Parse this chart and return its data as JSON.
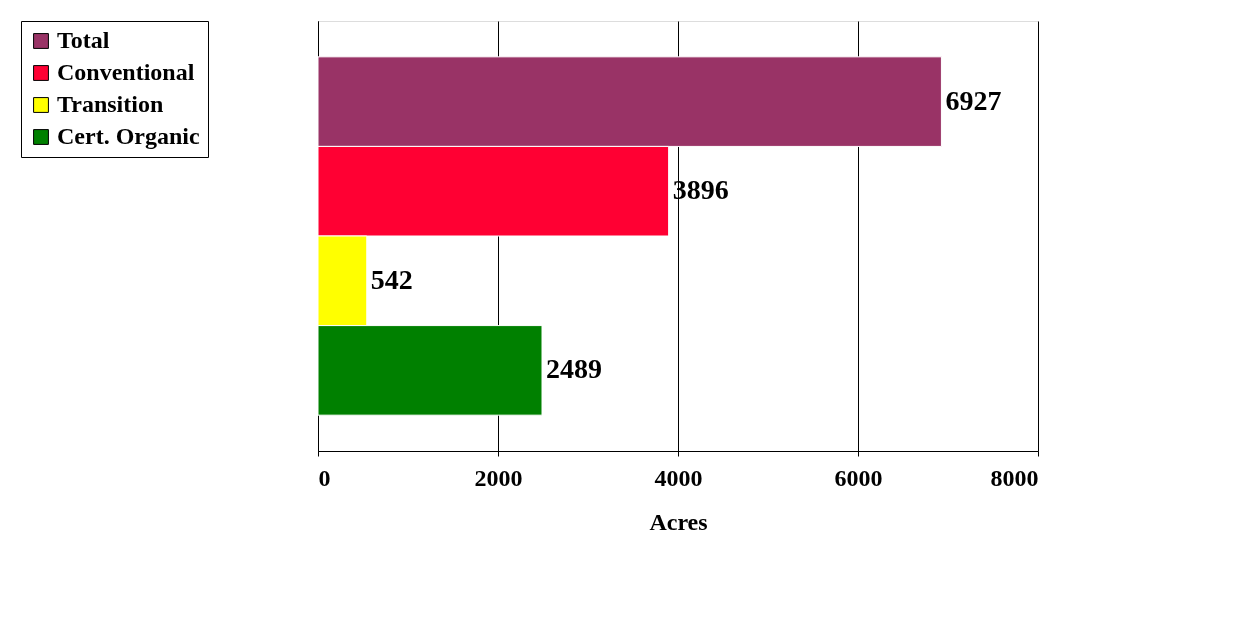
{
  "chart_data": {
    "type": "bar",
    "orientation": "horizontal",
    "categories": [
      null,
      null,
      null,
      null
    ],
    "series": [
      {
        "name": "Total",
        "color": "#993366",
        "values": [
          6927,
          null,
          null,
          null
        ]
      },
      {
        "name": "Conventional",
        "color": "#ff0033",
        "values": [
          null,
          3896,
          null,
          null
        ]
      },
      {
        "name": "Transition",
        "color": "#ffff00",
        "values": [
          null,
          null,
          542,
          null
        ]
      },
      {
        "name": "Cert. Organic",
        "color": "#008000",
        "values": [
          null,
          null,
          null,
          2489
        ]
      }
    ],
    "xlabel": "Acres",
    "xlim": [
      0,
      8000
    ],
    "xticks": [
      0,
      2000,
      4000,
      6000,
      8000
    ],
    "grid": "x",
    "legend": "left",
    "data_labels": true,
    "tick_labels": "x"
  }
}
